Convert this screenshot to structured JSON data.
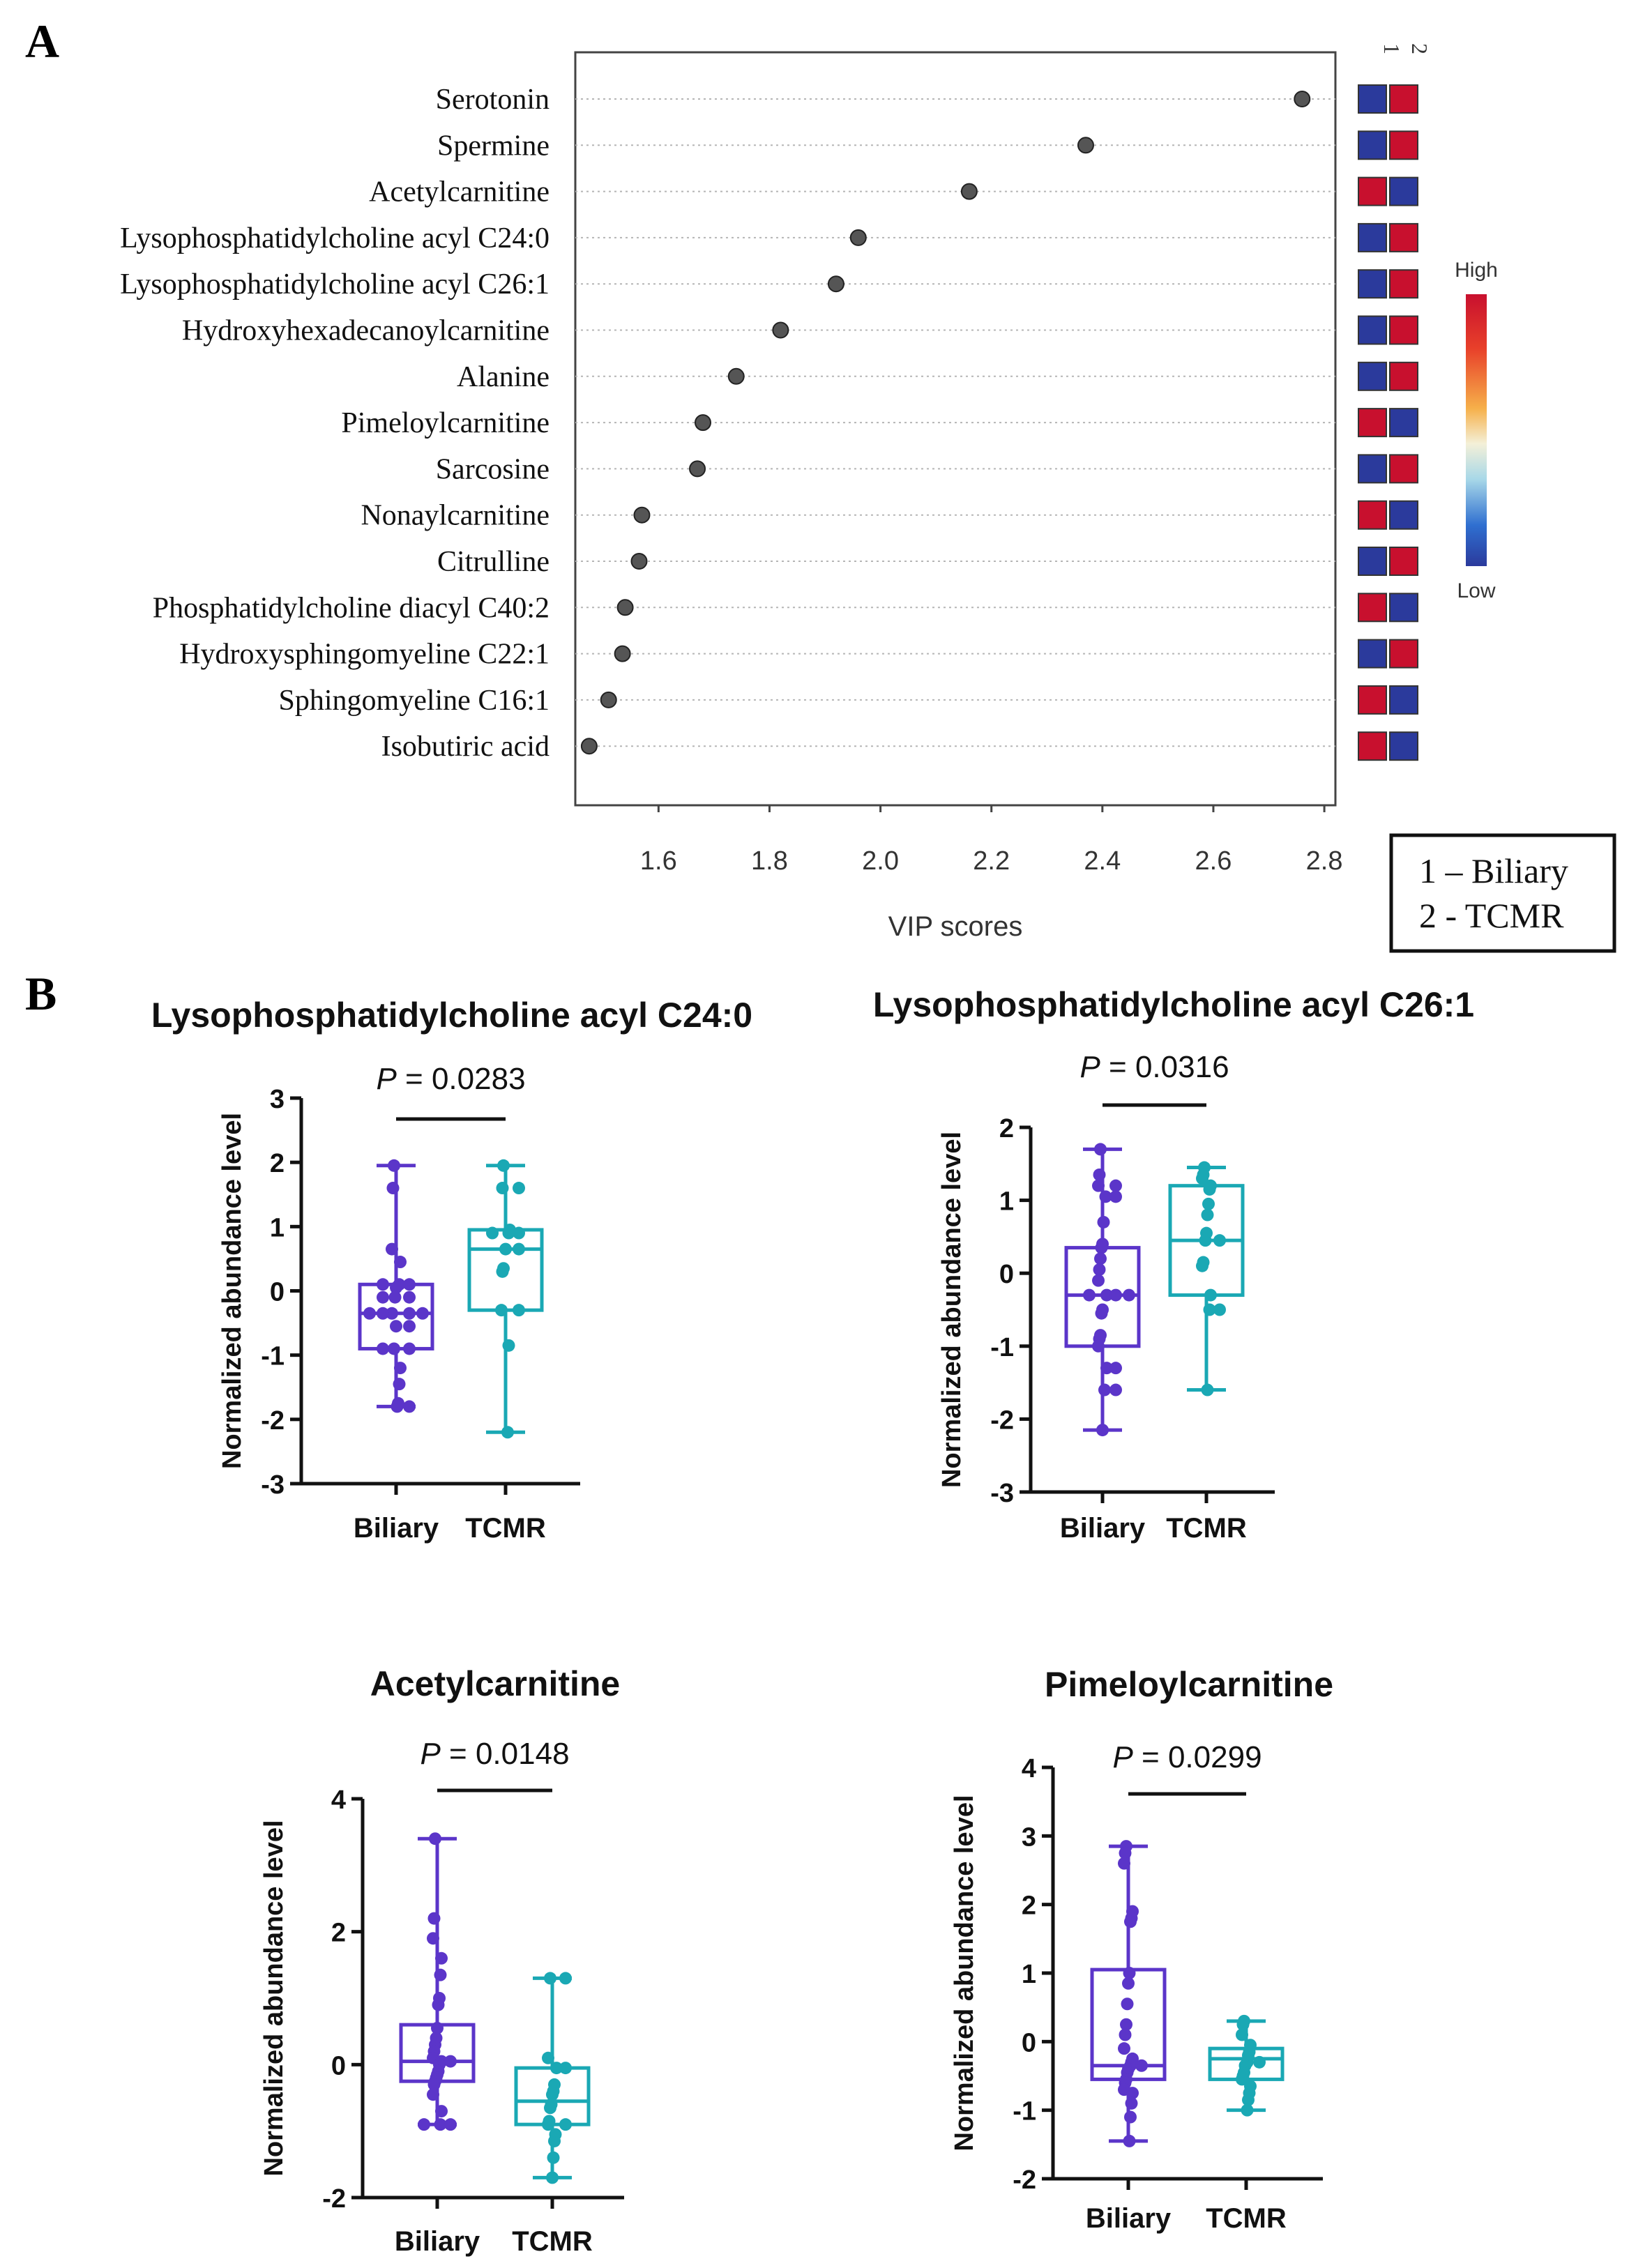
{
  "panels": {
    "a": "A",
    "b": "B"
  },
  "chart_data": [
    {
      "type": "scatter",
      "title": "",
      "xlabel": "VIP scores",
      "ylabel": "",
      "xlim": [
        1.45,
        2.82
      ],
      "xticks": [
        "1.6",
        "1.8",
        "2.0",
        "2.2",
        "2.4",
        "2.6",
        "2.8"
      ],
      "xtick_values": [
        1.6,
        1.8,
        2.0,
        2.2,
        2.4,
        2.6,
        2.8
      ],
      "grid": "horizontal dotted",
      "categories": [
        "Serotonin",
        "Spermine",
        "Acetylcarnitine",
        "Lysophosphatidylcholine acyl C24:0",
        "Lysophosphatidylcholine acyl C26:1",
        "Hydroxyhexadecanoylcarnitine",
        "Alanine",
        "Pimeloylcarnitine",
        "Sarcosine",
        "Nonaylcarnitine",
        "Citrulline",
        "Phosphatidylcholine diacyl C40:2",
        "Hydroxysphingomyeline C22:1",
        "Sphingomyeline C16:1",
        "Isobutiric acid"
      ],
      "values": [
        2.76,
        2.37,
        2.16,
        1.96,
        1.92,
        1.82,
        1.74,
        1.68,
        1.67,
        1.57,
        1.565,
        1.54,
        1.535,
        1.51,
        1.475
      ],
      "heatmap_columns": [
        "1",
        "2"
      ],
      "heatmap": [
        [
          "low",
          "high"
        ],
        [
          "low",
          "high"
        ],
        [
          "high",
          "low"
        ],
        [
          "low",
          "high"
        ],
        [
          "low",
          "high"
        ],
        [
          "low",
          "high"
        ],
        [
          "low",
          "high"
        ],
        [
          "high",
          "low"
        ],
        [
          "low",
          "high"
        ],
        [
          "high",
          "low"
        ],
        [
          "low",
          "high"
        ],
        [
          "high",
          "low"
        ],
        [
          "low",
          "high"
        ],
        [
          "high",
          "low"
        ],
        [
          "high",
          "low"
        ]
      ],
      "colorbar": {
        "high_label": "High",
        "low_label": "Low"
      },
      "legend": [
        "1 – Biliary",
        "2 - TCMR"
      ],
      "colors": {
        "dot": "#555555",
        "high": "#c8102e",
        "low": "#2b3a9c"
      }
    },
    {
      "type": "box",
      "title": "Lysophosphatidylcholine acyl C24:0",
      "ylabel": "Normalized abundance level",
      "ylim": [
        -3,
        3
      ],
      "yticks": [
        "3",
        "2",
        "1",
        "0",
        "-1",
        "-2",
        "-3"
      ],
      "ytick_values": [
        3,
        2,
        1,
        0,
        -1,
        -2,
        -3
      ],
      "categories": [
        "Biliary",
        "TCMR"
      ],
      "p_prefix": "P",
      "p_value": " = 0.0283",
      "series": [
        {
          "name": "Biliary",
          "color": "#5b35c9",
          "min": -1.8,
          "q1": -0.9,
          "median": -0.35,
          "q3": 0.1,
          "max": 1.95,
          "points": [
            1.95,
            1.6,
            0.65,
            0.45,
            0.1,
            0.1,
            0.1,
            0.05,
            -0.1,
            -0.1,
            -0.1,
            -0.35,
            -0.35,
            -0.35,
            -0.35,
            -0.35,
            -0.55,
            -0.55,
            -0.9,
            -0.9,
            -0.9,
            -1.2,
            -1.45,
            -1.75,
            -1.8,
            -1.8
          ]
        },
        {
          "name": "TCMR",
          "color": "#1aa8b4",
          "min": -2.2,
          "q1": -0.3,
          "median": 0.65,
          "q3": 0.95,
          "max": 1.95,
          "points": [
            1.95,
            1.6,
            1.6,
            0.95,
            0.9,
            0.9,
            0.9,
            0.65,
            0.65,
            0.35,
            0.3,
            -0.3,
            -0.3,
            -0.85,
            -2.2
          ]
        }
      ]
    },
    {
      "type": "box",
      "title": "Lysophosphatidylcholine acyl C26:1",
      "ylabel": "Normalized abundance level",
      "ylim": [
        -3,
        2
      ],
      "yticks": [
        "2",
        "1",
        "0",
        "-1",
        "-2",
        "-3"
      ],
      "ytick_values": [
        2,
        1,
        0,
        -1,
        -2,
        -3
      ],
      "categories": [
        "Biliary",
        "TCMR"
      ],
      "p_prefix": "P",
      "p_value": " = 0.0316",
      "series": [
        {
          "name": "Biliary",
          "color": "#5b35c9",
          "min": -2.15,
          "q1": -1.0,
          "median": -0.3,
          "q3": 0.35,
          "max": 1.7,
          "points": [
            1.7,
            1.35,
            1.2,
            1.2,
            1.05,
            1.05,
            0.7,
            0.4,
            0.35,
            0.2,
            0.05,
            -0.1,
            -0.3,
            -0.3,
            -0.3,
            -0.3,
            -0.5,
            -0.55,
            -0.85,
            -0.9,
            -1.0,
            -1.3,
            -1.3,
            -1.6,
            -1.6,
            -2.15
          ]
        },
        {
          "name": "TCMR",
          "color": "#1aa8b4",
          "min": -1.6,
          "q1": -0.3,
          "median": 0.45,
          "q3": 1.2,
          "max": 1.45,
          "points": [
            1.45,
            1.35,
            1.3,
            1.2,
            1.15,
            0.95,
            0.8,
            0.55,
            0.45,
            0.45,
            0.15,
            0.1,
            -0.3,
            -0.5,
            -0.5,
            -1.6
          ]
        }
      ]
    },
    {
      "type": "box",
      "title": "Acetylcarnitine",
      "ylabel": "Normalized abundance level",
      "ylim": [
        -2,
        4
      ],
      "yticks": [
        "4",
        "2",
        "0",
        "-2"
      ],
      "ytick_values": [
        4,
        2,
        0,
        -2
      ],
      "categories": [
        "Biliary",
        "TCMR"
      ],
      "p_prefix": "P",
      "p_value": " = 0.0148",
      "series": [
        {
          "name": "Biliary",
          "color": "#5b35c9",
          "min": -0.9,
          "q1": -0.25,
          "median": 0.05,
          "q3": 0.6,
          "max": 3.4,
          "points": [
            3.4,
            2.2,
            1.9,
            1.6,
            1.35,
            1.0,
            0.9,
            0.55,
            0.4,
            0.3,
            0.2,
            0.1,
            0.05,
            0.05,
            0.0,
            -0.1,
            -0.15,
            -0.2,
            -0.25,
            -0.3,
            -0.45,
            -0.7,
            -0.9,
            -0.9,
            -0.9
          ]
        },
        {
          "name": "TCMR",
          "color": "#1aa8b4",
          "min": -1.7,
          "q1": -0.9,
          "median": -0.55,
          "q3": -0.05,
          "max": 1.3,
          "points": [
            1.3,
            1.3,
            0.1,
            -0.05,
            -0.05,
            -0.3,
            -0.4,
            -0.45,
            -0.6,
            -0.65,
            -0.85,
            -0.9,
            -0.9,
            -1.05,
            -1.15,
            -1.4,
            -1.7
          ]
        }
      ]
    },
    {
      "type": "box",
      "title": "Pimeloylcarnitine",
      "ylabel": "Normalized abundance level",
      "ylim": [
        -2,
        4
      ],
      "yticks": [
        "4",
        "3",
        "2",
        "1",
        "0",
        "-1",
        "-2"
      ],
      "ytick_values": [
        4,
        3,
        2,
        1,
        0,
        -1,
        -2
      ],
      "categories": [
        "Biliary",
        "TCMR"
      ],
      "p_prefix": "P",
      "p_value": " = 0.0299",
      "series": [
        {
          "name": "Biliary",
          "color": "#5b35c9",
          "min": -1.45,
          "q1": -0.55,
          "median": -0.35,
          "q3": 1.05,
          "max": 2.85,
          "points": [
            2.85,
            2.75,
            2.6,
            1.9,
            1.8,
            1.75,
            1.0,
            0.85,
            0.55,
            0.25,
            0.1,
            -0.1,
            -0.25,
            -0.3,
            -0.35,
            -0.35,
            -0.4,
            -0.45,
            -0.55,
            -0.6,
            -0.7,
            -0.75,
            -0.9,
            -1.1,
            -1.45
          ]
        },
        {
          "name": "TCMR",
          "color": "#1aa8b4",
          "min": -1.0,
          "q1": -0.55,
          "median": -0.25,
          "q3": -0.1,
          "max": 0.3,
          "points": [
            0.3,
            0.25,
            0.1,
            -0.05,
            -0.15,
            -0.2,
            -0.3,
            -0.3,
            -0.35,
            -0.45,
            -0.5,
            -0.55,
            -0.65,
            -0.75,
            -0.85,
            -1.0
          ]
        }
      ]
    }
  ]
}
